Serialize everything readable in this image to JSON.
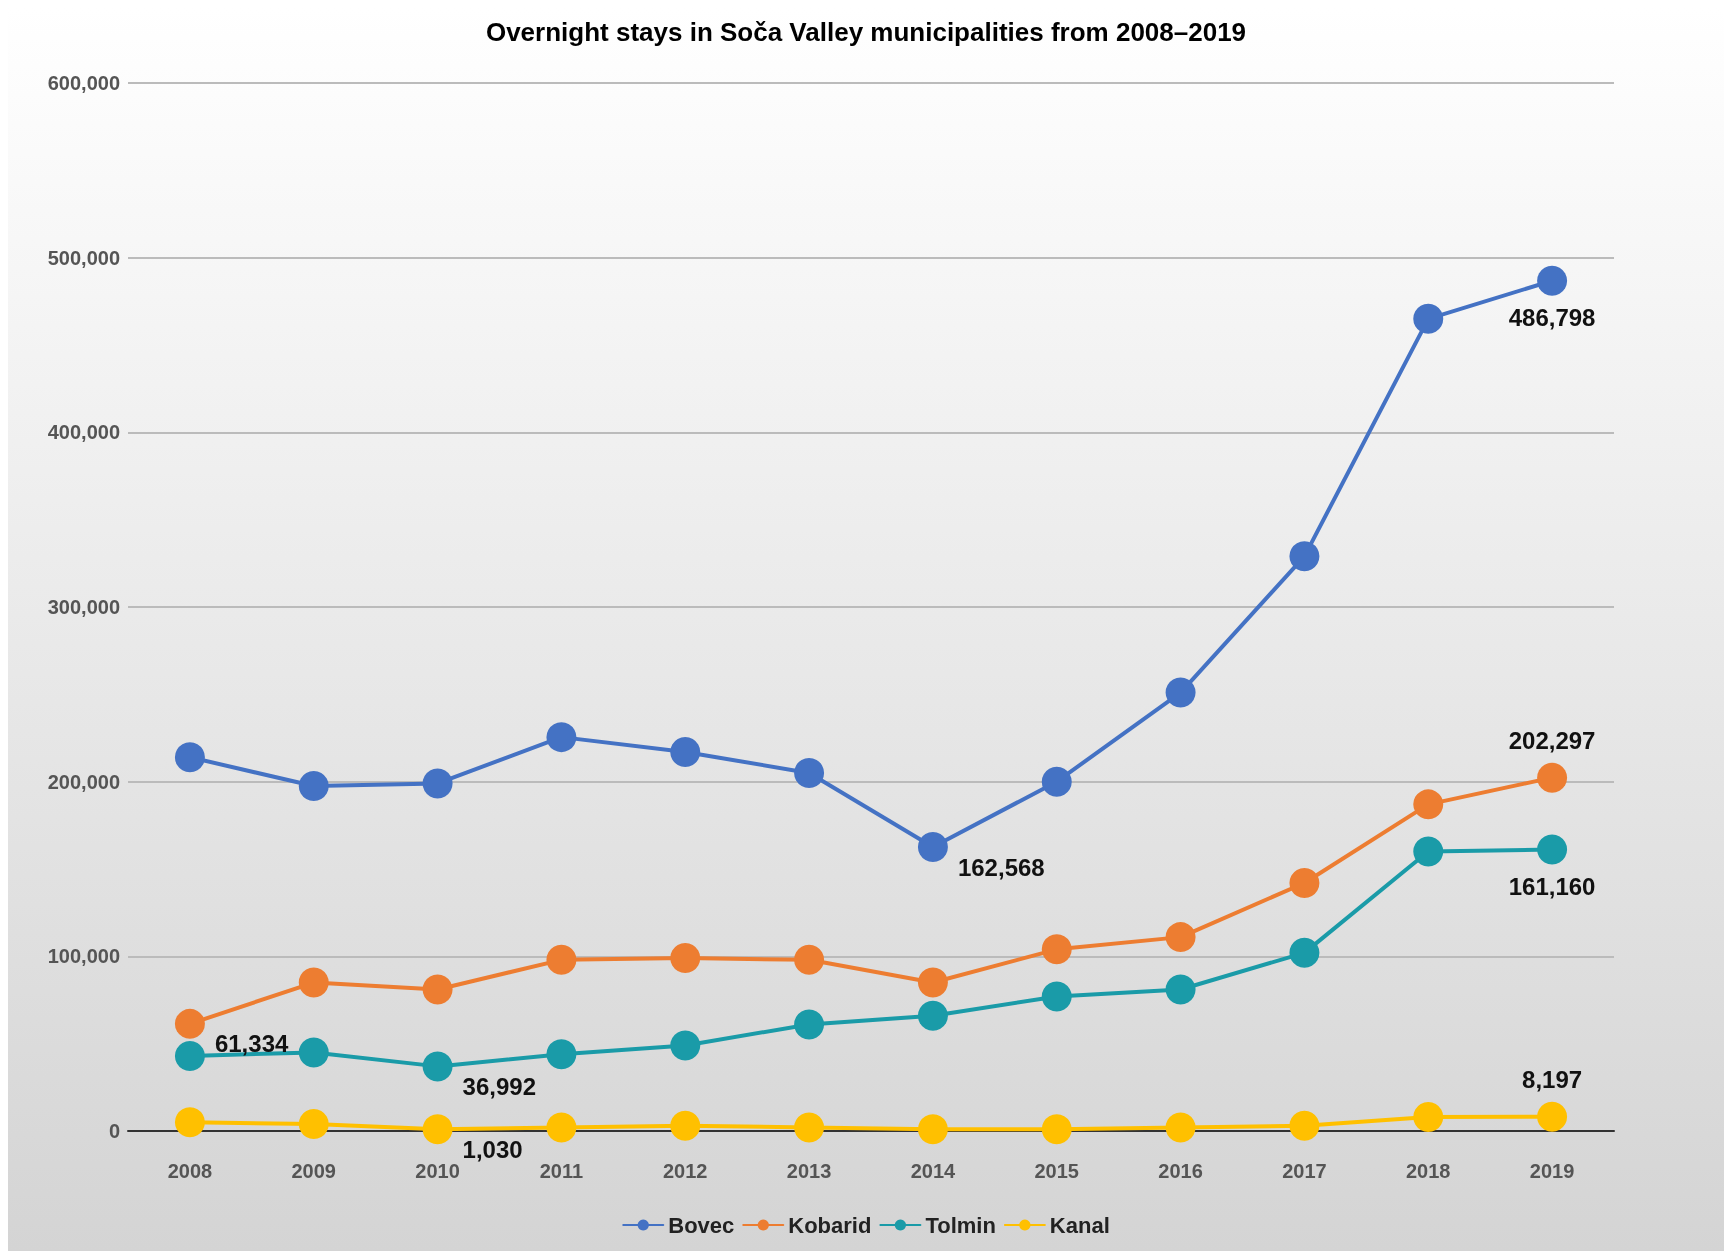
{
  "chart_data": {
    "type": "line",
    "title": "Overnight stays in Soča Valley municipalities from 2008–2019",
    "categories": [
      "2008",
      "2009",
      "2010",
      "2011",
      "2012",
      "2013",
      "2014",
      "2015",
      "2016",
      "2017",
      "2018",
      "2019"
    ],
    "series": [
      {
        "name": "Bovec",
        "color": "#4472c4",
        "values": [
          214000,
          197500,
          199000,
          225500,
          217000,
          205000,
          162568,
          200000,
          251000,
          329000,
          465000,
          486798
        ],
        "value_labels": [
          null,
          null,
          null,
          null,
          null,
          null,
          "162,568",
          null,
          null,
          null,
          null,
          "486,798"
        ]
      },
      {
        "name": "Kobarid",
        "color": "#ed7d31",
        "values": [
          61334,
          85000,
          81000,
          98000,
          99000,
          98000,
          85000,
          104000,
          111000,
          142000,
          187000,
          202297
        ],
        "value_labels": [
          "61,334",
          null,
          null,
          null,
          null,
          null,
          null,
          null,
          null,
          null,
          null,
          "202,297"
        ]
      },
      {
        "name": "Tolmin",
        "color": "#1a9ba8",
        "values": [
          43000,
          45000,
          36992,
          44000,
          49000,
          61000,
          66000,
          77000,
          81000,
          102000,
          160000,
          161160
        ],
        "value_labels": [
          null,
          null,
          "36,992",
          null,
          null,
          null,
          null,
          null,
          null,
          null,
          null,
          "161,160"
        ]
      },
      {
        "name": "Kanal",
        "color": "#ffc000",
        "values": [
          5000,
          4000,
          1030,
          2000,
          3000,
          2000,
          1000,
          1000,
          2000,
          3000,
          8000,
          8197
        ],
        "value_labels": [
          null,
          null,
          "1,030",
          null,
          null,
          null,
          null,
          null,
          null,
          null,
          null,
          "8,197"
        ]
      }
    ],
    "ylim": [
      0,
      600000
    ],
    "yticks": [
      0,
      {
        "value": 100000,
        "label": "100,000"
      },
      {
        "value": 200000,
        "label": "200,000"
      },
      {
        "value": 300000,
        "label": "300,000"
      },
      {
        "value": 400000,
        "label": "400,000"
      },
      {
        "value": 500000,
        "label": "500,000"
      },
      {
        "value": 600000,
        "label": "600,000"
      }
    ],
    "grid": "y",
    "legend": "bottom",
    "marker": "circle",
    "line_style": "solid"
  }
}
